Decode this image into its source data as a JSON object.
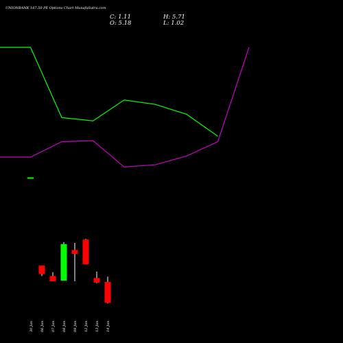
{
  "header": {
    "title": "UNIONBANK 167.50 PE Options Chart MunafaSutra.com",
    "open_label": "O: 5.18",
    "high_label": "H: 5.71",
    "low_label": "L: 1.02",
    "close_label": "C: 1.11"
  },
  "chart_data": {
    "type": "candlestick",
    "title": "UNIONBANK 167.50 PE Options Chart MunafaSutra.com",
    "categories": [
      "30 Jan",
      "06 Jun",
      "07 Jun",
      "08 Jun",
      "09 Jun",
      "12 Jun",
      "13 Jun",
      "14 Jun"
    ],
    "candles": [
      null,
      {
        "open": 3.2,
        "high": 3.2,
        "low": 2.4,
        "close": 2.55
      },
      {
        "open": 2.4,
        "high": 2.7,
        "low": 2.0,
        "close": 2.0
      },
      {
        "open": 2.05,
        "high": 5.0,
        "low": 2.05,
        "close": 4.85
      },
      {
        "open": 4.4,
        "high": 4.95,
        "low": 2.0,
        "close": 4.1
      },
      {
        "open": 5.2,
        "high": 5.25,
        "low": 3.3,
        "close": 3.3
      },
      {
        "open": 2.25,
        "high": 2.75,
        "low": 1.85,
        "close": 1.9
      },
      {
        "open": 1.95,
        "high": 2.35,
        "low": 0.3,
        "close": 0.35
      }
    ],
    "candle_ylim": [
      0,
      6
    ],
    "overlay_lines": [
      {
        "color": "#00ff00",
        "x": [
          0,
          1,
          2,
          3,
          4,
          5,
          6,
          7
        ],
        "values": [
          100,
          100,
          36,
          33,
          52,
          48,
          39,
          19
        ]
      },
      {
        "color": "#cc00cc",
        "x": [
          0,
          1,
          2,
          3,
          4,
          5,
          6,
          7,
          8
        ],
        "values": [
          0,
          0,
          14,
          15,
          -9,
          -7,
          1,
          14,
          100
        ]
      }
    ],
    "marker_color": "#00ff00",
    "up_color": "#00ff00",
    "down_color": "#ff0000"
  }
}
